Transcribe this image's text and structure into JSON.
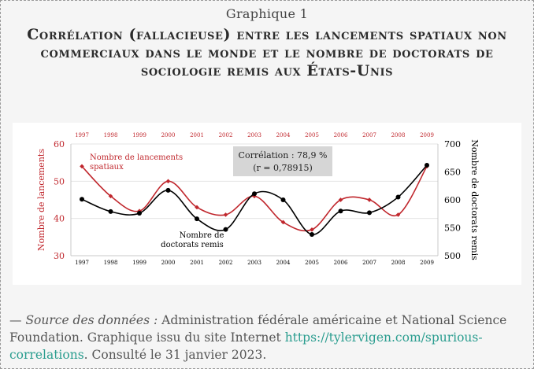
{
  "header": {
    "kicker": "Graphique 1",
    "title": "Corrélation (fallacieuse) entre les lancements spatiaux non commerciaux dans le monde et le nombre de doctorats de sociologie remis aux États-Unis"
  },
  "source": {
    "prefix": "— ",
    "label": "Source des données :",
    "text": " Administration fédérale américaine et National Science Foundation. Graphique issu du site Internet ",
    "link": "https://tylervigen.com/spurious-correlations",
    "suffix": ". Consulté le 31 janvier 2023."
  },
  "chart_data": {
    "type": "line",
    "x": [
      "1997",
      "1998",
      "1999",
      "2000",
      "2001",
      "2002",
      "2003",
      "2004",
      "2005",
      "2006",
      "2007",
      "2008",
      "2009"
    ],
    "series": [
      {
        "name": "Nombre de lancements spatiaux",
        "axis": "left",
        "color": "#c0272d",
        "values": [
          54,
          46,
          42,
          50,
          43,
          41,
          46,
          39,
          37,
          45,
          45,
          41,
          54
        ]
      },
      {
        "name": "Nombre de doctorats remis",
        "axis": "right",
        "color": "#000000",
        "values": [
          601,
          579,
          576,
          617,
          566,
          547,
          611,
          600,
          538,
          580,
          577,
          605,
          662
        ]
      }
    ],
    "left_axis": {
      "label": "Nombre de lancements",
      "ylim": [
        30,
        60
      ],
      "ticks": [
        "30",
        "40",
        "50",
        "60"
      ]
    },
    "right_axis": {
      "label": "Nombre de doctorats remis",
      "ylim": [
        500,
        700
      ],
      "ticks": [
        "500",
        "550",
        "600",
        "650",
        "700"
      ]
    },
    "annotation_line1": "Corrélation : 78,9 %",
    "annotation_line2": "(r = 0,78915)",
    "series_label_red": [
      "Nombre de lancements",
      "spatiaux"
    ],
    "series_label_black": [
      "Nombre de",
      "doctorats remis"
    ],
    "colors": {
      "red": "#c0272d",
      "black": "#000000",
      "annotation_bg": "#d6d6d6"
    }
  }
}
